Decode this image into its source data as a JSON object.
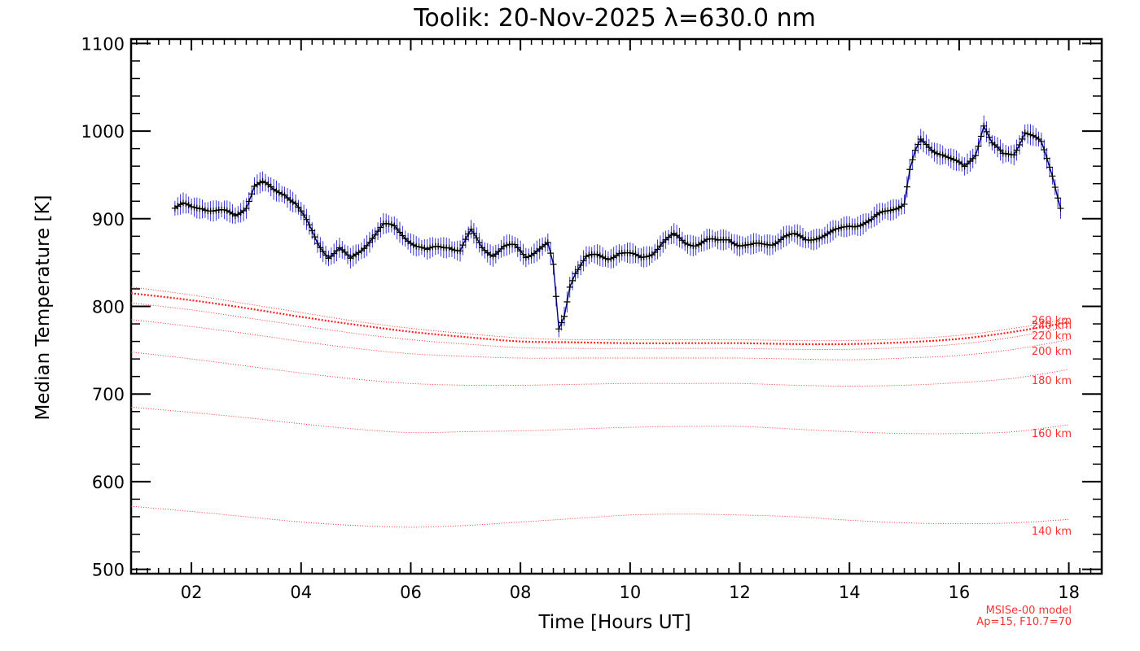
{
  "chart_data": {
    "type": "line",
    "title": "Toolik: 20-Nov-2025 λ=630.0 nm",
    "xlabel": "Time [Hours UT]",
    "ylabel": "Median Temperature [K]",
    "xlim": [
      0.9,
      18.6
    ],
    "ylim": [
      495,
      1105
    ],
    "x_ticks": [
      2,
      4,
      6,
      8,
      10,
      12,
      14,
      16,
      18
    ],
    "x_tick_labels": [
      "02",
      "04",
      "06",
      "08",
      "10",
      "12",
      "14",
      "16",
      "18"
    ],
    "y_ticks": [
      500,
      600,
      700,
      800,
      900,
      1000,
      1100
    ],
    "y_tick_labels": [
      "500",
      "600",
      "700",
      "800",
      "900",
      "1000",
      "1100"
    ],
    "colors": {
      "measured": "#000080",
      "error_bar": "#2020d0",
      "model": "#ff2020"
    },
    "measured": {
      "name": "Median Temperature",
      "x": [
        1.7,
        1.85,
        2.0,
        2.2,
        2.4,
        2.6,
        2.8,
        3.0,
        3.15,
        3.3,
        3.5,
        3.7,
        3.9,
        4.1,
        4.3,
        4.5,
        4.7,
        4.9,
        5.1,
        5.3,
        5.5,
        5.7,
        5.9,
        6.1,
        6.3,
        6.5,
        6.7,
        6.9,
        7.1,
        7.3,
        7.5,
        7.7,
        7.9,
        8.1,
        8.3,
        8.5,
        8.6,
        8.7,
        8.8,
        8.9,
        9.0,
        9.2,
        9.4,
        9.6,
        9.8,
        10.0,
        10.2,
        10.4,
        10.6,
        10.8,
        11.0,
        11.2,
        11.4,
        11.6,
        11.8,
        12.0,
        12.2,
        12.4,
        12.6,
        12.8,
        13.0,
        13.2,
        13.4,
        13.6,
        13.8,
        14.0,
        14.2,
        14.4,
        14.6,
        14.8,
        15.0,
        15.1,
        15.2,
        15.3,
        15.5,
        15.7,
        15.9,
        16.1,
        16.3,
        16.45,
        16.6,
        16.8,
        17.0,
        17.2,
        17.35,
        17.5,
        17.7,
        17.85
      ],
      "y": [
        912,
        915,
        912,
        914,
        910,
        907,
        903,
        915,
        938,
        940,
        932,
        930,
        918,
        896,
        872,
        858,
        866,
        852,
        865,
        880,
        892,
        890,
        880,
        870,
        862,
        868,
        870,
        863,
        885,
        868,
        860,
        867,
        868,
        858,
        865,
        870,
        845,
        773,
        790,
        825,
        840,
        855,
        857,
        856,
        862,
        858,
        855,
        862,
        873,
        880,
        873,
        872,
        875,
        873,
        878,
        871,
        868,
        870,
        873,
        880,
        880,
        876,
        880,
        882,
        886,
        893,
        895,
        897,
        906,
        913,
        918,
        955,
        975,
        988,
        980,
        975,
        965,
        958,
        975,
        1008,
        985,
        972,
        975,
        1000,
        993,
        985,
        950,
        915
      ]
    },
    "model_series": [
      {
        "name": "140 km",
        "label": "140 km",
        "x": [
          0.9,
          2,
          3,
          4,
          5,
          6,
          7,
          8,
          9,
          10,
          11,
          12,
          13,
          14,
          15,
          16,
          17,
          18
        ],
        "y": [
          572,
          566,
          560,
          554,
          550,
          548,
          550,
          554,
          558,
          562,
          563,
          562,
          560,
          556,
          553,
          552,
          553,
          557
        ]
      },
      {
        "name": "160 km",
        "label": "160 km",
        "x": [
          0.9,
          2,
          3,
          4,
          5,
          6,
          7,
          8,
          9,
          10,
          11,
          12,
          13,
          14,
          15,
          16,
          17,
          18
        ],
        "y": [
          685,
          679,
          673,
          666,
          660,
          656,
          657,
          658,
          660,
          662,
          663,
          663,
          660,
          657,
          655,
          655,
          657,
          665
        ]
      },
      {
        "name": "180 km",
        "label": "180 km",
        "x": [
          0.9,
          2,
          3,
          4,
          5,
          6,
          7,
          8,
          9,
          10,
          11,
          12,
          13,
          14,
          15,
          16,
          17,
          18
        ],
        "y": [
          748,
          740,
          732,
          724,
          717,
          712,
          710,
          710,
          711,
          712,
          712,
          712,
          710,
          709,
          710,
          713,
          718,
          728
        ]
      },
      {
        "name": "200 km",
        "label": "200 km",
        "x": [
          0.9,
          2,
          3,
          4,
          5,
          6,
          7,
          8,
          9,
          10,
          11,
          12,
          13,
          14,
          15,
          16,
          17,
          18
        ],
        "y": [
          785,
          777,
          769,
          760,
          752,
          746,
          743,
          741,
          741,
          741,
          741,
          741,
          740,
          739,
          741,
          744,
          751,
          762
        ]
      },
      {
        "name": "220 km",
        "label": "220 km",
        "x": [
          0.9,
          2,
          3,
          4,
          5,
          6,
          7,
          8,
          9,
          10,
          11,
          12,
          13,
          14,
          15,
          16,
          17,
          18
        ],
        "y": [
          804,
          796,
          787,
          778,
          769,
          762,
          757,
          753,
          752,
          752,
          752,
          752,
          751,
          751,
          753,
          757,
          765,
          777
        ]
      },
      {
        "name": "240 km",
        "label": "240 km",
        "x": [
          0.9,
          2,
          3,
          4,
          5,
          6,
          7,
          8,
          9,
          10,
          11,
          12,
          13,
          14,
          15,
          16,
          17,
          18
        ],
        "y": [
          815,
          807,
          798,
          788,
          779,
          771,
          765,
          760,
          759,
          758,
          758,
          758,
          757,
          757,
          759,
          763,
          771,
          782
        ]
      },
      {
        "name": "260 km",
        "label": "260 km",
        "x": [
          0.9,
          2,
          3,
          4,
          5,
          6,
          7,
          8,
          9,
          10,
          11,
          12,
          13,
          14,
          15,
          16,
          17,
          18
        ],
        "y": [
          822,
          813,
          803,
          793,
          783,
          775,
          769,
          764,
          762,
          762,
          762,
          762,
          761,
          761,
          763,
          767,
          775,
          786
        ]
      }
    ],
    "annotations": [
      "MSISe-00 model",
      "Ap=15, F10.7=70"
    ]
  }
}
